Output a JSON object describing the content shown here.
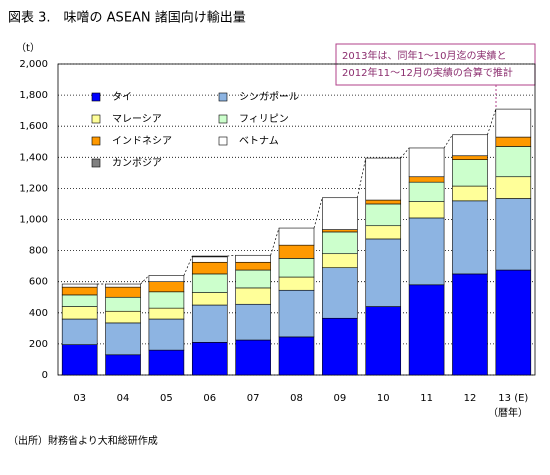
{
  "chart_data": {
    "type": "stacked_bar",
    "title": "図表 3.　味噌の ASEAN 諸国向け輸出量",
    "y_label": "（t）",
    "x_label": "（暦年）",
    "annotation": [
      "2013年は、同年1～10月迄の実績と",
      "2012年11～12月の実績の合算で推計"
    ],
    "source": "（出所）財務省より大和総研作成",
    "categories": [
      "03",
      "04",
      "05",
      "06",
      "07",
      "08",
      "09",
      "10",
      "11",
      "12",
      "13 (E)"
    ],
    "ylim": [
      0,
      2000
    ],
    "yticks": [
      0,
      200,
      400,
      600,
      800,
      {
        "value": 1000,
        "label": "1,000"
      },
      {
        "value": 1200,
        "label": "1,200"
      },
      {
        "value": 1400,
        "label": "1,400"
      },
      {
        "value": 1600,
        "label": "1,600"
      },
      {
        "value": 1800,
        "label": "1,800"
      },
      {
        "value": 2000,
        "label": "2,000"
      }
    ],
    "grid": true,
    "series": [
      {
        "name": "タイ",
        "color": "#0000ff",
        "values": [
          195,
          130,
          160,
          210,
          225,
          245,
          365,
          440,
          580,
          650,
          675
        ]
      },
      {
        "name": "シンガポール",
        "color": "#8db4e2",
        "values": [
          165,
          205,
          200,
          240,
          230,
          300,
          325,
          435,
          430,
          470,
          460
        ]
      },
      {
        "name": "マレーシア",
        "color": "#ffff99",
        "values": [
          80,
          75,
          70,
          80,
          105,
          85,
          90,
          85,
          105,
          95,
          140
        ]
      },
      {
        "name": "フィリピン",
        "color": "#ccffcc",
        "values": [
          75,
          90,
          105,
          120,
          115,
          120,
          140,
          140,
          125,
          170,
          195
        ]
      },
      {
        "name": "インドネシア",
        "color": "#ff9900",
        "values": [
          50,
          65,
          65,
          75,
          50,
          85,
          15,
          25,
          35,
          25,
          60
        ]
      },
      {
        "name": "ベトナム",
        "color": "#ffffff",
        "values": [
          20,
          20,
          40,
          35,
          45,
          110,
          205,
          270,
          185,
          135,
          180
        ]
      },
      {
        "name": "カンボジア",
        "color": "#808080",
        "values": [
          0,
          0,
          0,
          5,
          0,
          0,
          0,
          0,
          0,
          0,
          0
        ]
      }
    ]
  }
}
